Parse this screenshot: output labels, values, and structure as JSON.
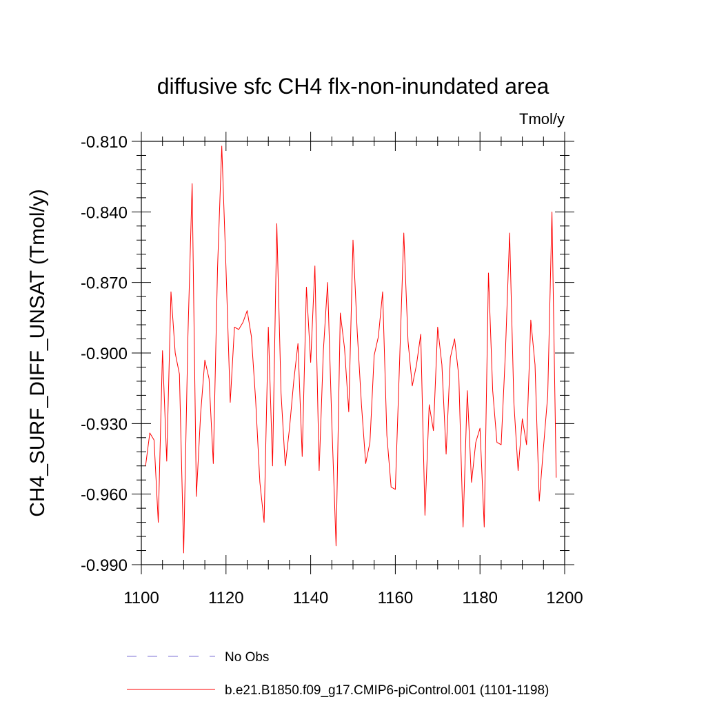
{
  "chart_data": {
    "type": "line",
    "title": "diffusive sfc CH4 flx-non-inundated area",
    "units_label": "Tmol/y",
    "xlabel": "",
    "ylabel": "CH4_SURF_DIFF_UNSAT  (Tmol/y)",
    "xlim": [
      1100,
      1200
    ],
    "ylim": [
      -0.99,
      -0.81
    ],
    "xticks": [
      1100,
      1120,
      1140,
      1160,
      1180,
      1200
    ],
    "xtick_labels": [
      "1100",
      "1120",
      "1140",
      "1160",
      "1180",
      "1200"
    ],
    "yticks": [
      -0.81,
      -0.84,
      -0.87,
      -0.9,
      -0.93,
      -0.96,
      -0.99
    ],
    "ytick_labels": [
      "-0.810",
      "-0.840",
      "-0.870",
      "-0.900",
      "-0.930",
      "-0.960",
      "-0.990"
    ],
    "grid": false,
    "legend_position": "bottom",
    "series": [
      {
        "name": "No Obs",
        "color": "#7b6fd6",
        "dash": true,
        "x": [],
        "y": []
      },
      {
        "name": "b.e21.B1850.f09_g17.CMIP6-piControl.001 (1101-1198)",
        "color": "#ff0000",
        "dash": false,
        "x": [
          1101,
          1102,
          1103,
          1104,
          1105,
          1106,
          1107,
          1108,
          1109,
          1110,
          1111,
          1112,
          1113,
          1114,
          1115,
          1116,
          1117,
          1118,
          1119,
          1120,
          1121,
          1122,
          1123,
          1124,
          1125,
          1126,
          1127,
          1128,
          1129,
          1130,
          1131,
          1132,
          1133,
          1134,
          1135,
          1136,
          1137,
          1138,
          1139,
          1140,
          1141,
          1142,
          1143,
          1144,
          1145,
          1146,
          1147,
          1148,
          1149,
          1150,
          1151,
          1152,
          1153,
          1154,
          1155,
          1156,
          1157,
          1158,
          1159,
          1160,
          1161,
          1162,
          1163,
          1164,
          1165,
          1166,
          1167,
          1168,
          1169,
          1170,
          1171,
          1172,
          1173,
          1174,
          1175,
          1176,
          1177,
          1178,
          1179,
          1180,
          1181,
          1182,
          1183,
          1184,
          1185,
          1186,
          1187,
          1188,
          1189,
          1190,
          1191,
          1192,
          1193,
          1194,
          1195,
          1196,
          1197,
          1198
        ],
        "y": [
          -0.948,
          -0.934,
          -0.937,
          -0.972,
          -0.899,
          -0.946,
          -0.874,
          -0.9,
          -0.909,
          -0.985,
          -0.893,
          -0.828,
          -0.961,
          -0.926,
          -0.903,
          -0.911,
          -0.947,
          -0.864,
          -0.812,
          -0.864,
          -0.921,
          -0.889,
          -0.89,
          -0.887,
          -0.882,
          -0.893,
          -0.92,
          -0.955,
          -0.972,
          -0.889,
          -0.948,
          -0.845,
          -0.917,
          -0.948,
          -0.932,
          -0.912,
          -0.896,
          -0.944,
          -0.872,
          -0.904,
          -0.863,
          -0.95,
          -0.899,
          -0.87,
          -0.93,
          -0.982,
          -0.883,
          -0.898,
          -0.925,
          -0.852,
          -0.891,
          -0.922,
          -0.947,
          -0.938,
          -0.901,
          -0.893,
          -0.874,
          -0.935,
          -0.957,
          -0.958,
          -0.904,
          -0.849,
          -0.895,
          -0.914,
          -0.905,
          -0.892,
          -0.969,
          -0.922,
          -0.933,
          -0.889,
          -0.905,
          -0.943,
          -0.902,
          -0.894,
          -0.91,
          -0.974,
          -0.916,
          -0.955,
          -0.938,
          -0.932,
          -0.974,
          -0.866,
          -0.916,
          -0.938,
          -0.939,
          -0.9,
          -0.849,
          -0.921,
          -0.95,
          -0.928,
          -0.939,
          -0.886,
          -0.905,
          -0.963,
          -0.94,
          -0.918,
          -0.84,
          -0.953
        ]
      }
    ]
  }
}
